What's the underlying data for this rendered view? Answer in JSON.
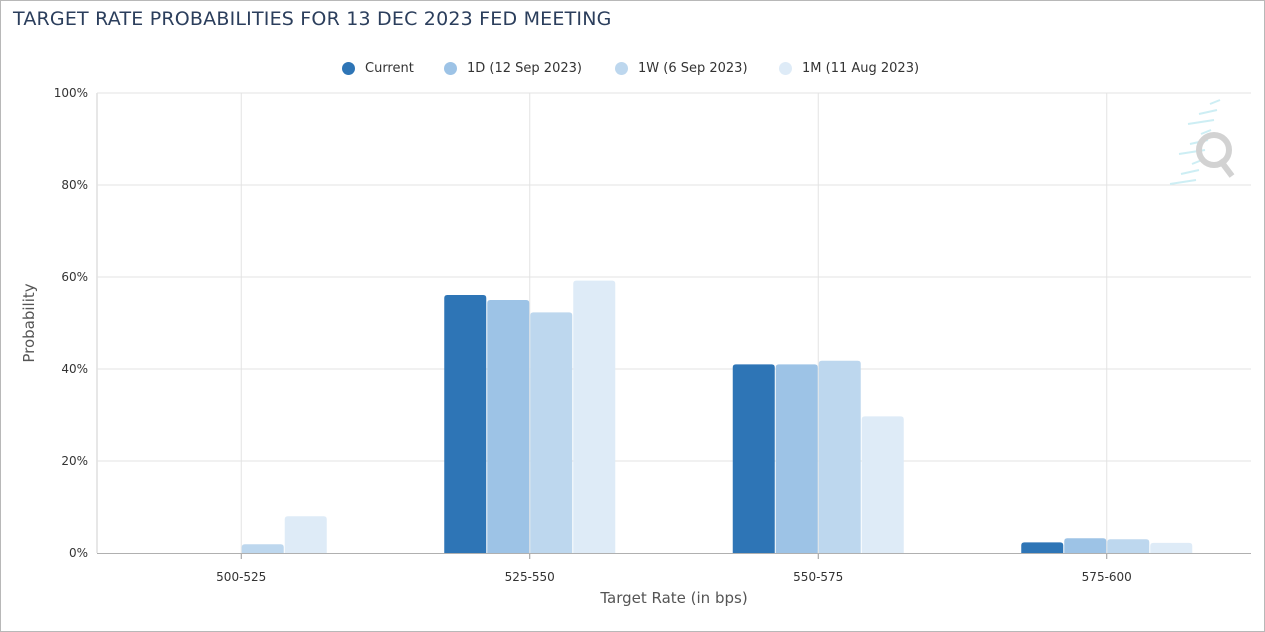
{
  "chart_data": {
    "type": "bar",
    "title": "TARGET RATE PROBABILITIES FOR 13 DEC 2023 FED MEETING",
    "xlabel": "Target Rate (in bps)",
    "ylabel": "Probability",
    "categories": [
      "500-525",
      "525-550",
      "550-575",
      "575-600"
    ],
    "ylim": [
      0,
      100
    ],
    "yticks": [
      "0%",
      "20%",
      "40%",
      "60%",
      "80%",
      "100%"
    ],
    "grid": true,
    "legend_position": "top-center",
    "series": [
      {
        "name": "Current",
        "color": "#2e75b6",
        "values": [
          0,
          56.1,
          41.0,
          2.3
        ]
      },
      {
        "name": "1D (12 Sep 2023)",
        "color": "#9dc3e6",
        "values": [
          0,
          55.0,
          41.0,
          3.2
        ]
      },
      {
        "name": "1W (6 Sep 2023)",
        "color": "#bdd7ee",
        "values": [
          1.9,
          52.3,
          41.8,
          3.0
        ]
      },
      {
        "name": "1M (11 Aug 2023)",
        "color": "#deebf7",
        "values": [
          8.0,
          59.2,
          29.7,
          2.2
        ]
      }
    ]
  }
}
